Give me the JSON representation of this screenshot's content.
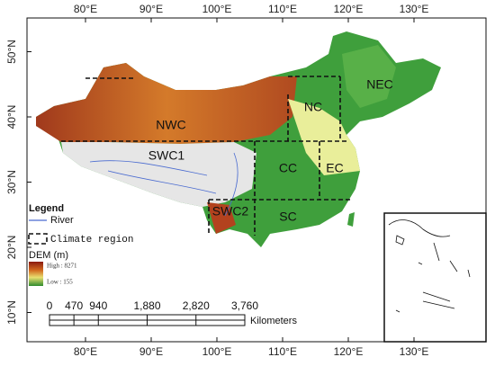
{
  "map": {
    "lon_ticks": [
      {
        "value": 80,
        "label": "80°E"
      },
      {
        "value": 90,
        "label": "90°E"
      },
      {
        "value": 100,
        "label": "100°E"
      },
      {
        "value": 110,
        "label": "110°E"
      },
      {
        "value": 120,
        "label": "120°E"
      },
      {
        "value": 130,
        "label": "130°E"
      }
    ],
    "lat_ticks": [
      {
        "value": 50,
        "label": "50°N"
      },
      {
        "value": 40,
        "label": "40°N"
      },
      {
        "value": 30,
        "label": "30°N"
      },
      {
        "value": 20,
        "label": "20°N"
      },
      {
        "value": 10,
        "label": "10°N"
      }
    ],
    "regions": [
      "NWC",
      "SWC1",
      "NC",
      "NEC",
      "CC",
      "EC",
      "SWC2",
      "SC"
    ],
    "legend": {
      "title": "Legend",
      "river": "River",
      "climate": "Climate region",
      "dem": "DEM (m)",
      "high": "High : 8271",
      "low": "Low : 155"
    },
    "scale": {
      "ticks": [
        0,
        470,
        940,
        {
          "value": 1880,
          "label": "1,880"
        },
        {
          "value": 2820,
          "label": "2,820"
        },
        {
          "value": 3760,
          "label": "3,760"
        }
      ],
      "unit": "Kilometers"
    }
  }
}
